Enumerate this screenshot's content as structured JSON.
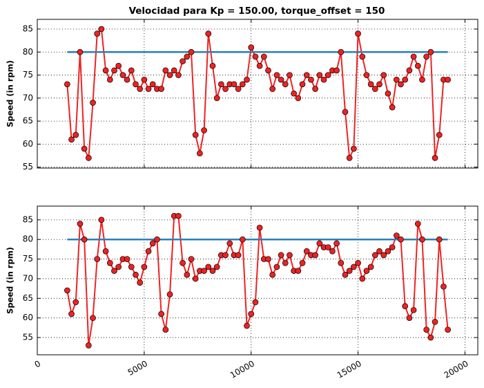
{
  "chart_data": [
    {
      "type": "line",
      "title": "Velocidad para Kp = 150.00, torque_offset = 150",
      "ylabel": "Speed (in rpm)",
      "xlim": [
        0,
        20600
      ],
      "xticks": [
        0,
        5000,
        10000,
        15000,
        20000
      ],
      "ylim": [
        54.8,
        87.1
      ],
      "yticks": [
        55,
        60,
        65,
        70,
        75,
        80,
        85
      ],
      "grid": true,
      "series": [
        {
          "color": "#ee2222",
          "marker": "o",
          "x": [
            1400,
            1600,
            1800,
            2000,
            2200,
            2400,
            2600,
            2800,
            3000,
            3200,
            3400,
            3600,
            3800,
            4000,
            4200,
            4400,
            4600,
            4800,
            5000,
            5200,
            5400,
            5600,
            5800,
            6000,
            6200,
            6400,
            6600,
            6800,
            7000,
            7200,
            7400,
            7600,
            7800,
            8000,
            8200,
            8400,
            8600,
            8800,
            9000,
            9200,
            9400,
            9600,
            9800,
            10000,
            10200,
            10400,
            10600,
            10800,
            11000,
            11200,
            11400,
            11600,
            11800,
            12000,
            12200,
            12400,
            12600,
            12800,
            13000,
            13200,
            13400,
            13600,
            13800,
            14000,
            14200,
            14400,
            14600,
            14800,
            15000,
            15200,
            15400,
            15600,
            15800,
            16000,
            16200,
            16400,
            16600,
            16800,
            17000,
            17200,
            17400,
            17600,
            17800,
            18000,
            18200,
            18400,
            18600,
            18800,
            19000,
            19200
          ],
          "values": [
            73,
            61,
            62,
            80,
            59,
            57,
            69,
            84,
            85,
            76,
            74,
            76,
            77,
            75,
            74,
            76,
            73,
            72,
            74,
            72,
            73,
            72,
            72,
            76,
            75,
            76,
            75,
            78,
            79,
            80,
            62,
            58,
            63,
            84,
            77,
            70,
            73,
            72,
            73,
            73,
            72,
            73,
            74,
            81,
            79,
            77,
            79,
            76,
            72,
            75,
            74,
            73,
            75,
            71,
            70,
            73,
            75,
            74,
            72,
            75,
            74,
            75,
            76,
            76,
            80,
            67,
            57,
            59,
            84,
            79,
            75,
            73,
            72,
            73,
            75,
            71,
            68,
            74,
            73,
            74,
            76,
            79,
            77,
            74,
            79,
            80,
            57,
            62,
            74,
            74
          ]
        },
        {
          "color": "#2a7fb8",
          "x": [
            1400,
            19200
          ],
          "values": [
            80,
            80
          ]
        }
      ]
    },
    {
      "type": "line",
      "ylabel": "Speed (in rpm)",
      "xlim": [
        0,
        20600
      ],
      "xticks": [
        0,
        5000,
        10000,
        15000,
        20000
      ],
      "ylim": [
        50.6,
        88.5
      ],
      "yticks": [
        55,
        60,
        65,
        70,
        75,
        80,
        85
      ],
      "grid": true,
      "series": [
        {
          "color": "#ee2222",
          "marker": "o",
          "x": [
            1400,
            1600,
            1800,
            2000,
            2200,
            2400,
            2600,
            2800,
            3000,
            3200,
            3400,
            3600,
            3800,
            4000,
            4200,
            4400,
            4600,
            4800,
            5000,
            5200,
            5400,
            5600,
            5800,
            6000,
            6200,
            6400,
            6600,
            6800,
            7000,
            7200,
            7400,
            7600,
            7800,
            8000,
            8200,
            8400,
            8600,
            8800,
            9000,
            9200,
            9400,
            9600,
            9800,
            10000,
            10200,
            10400,
            10600,
            10800,
            11000,
            11200,
            11400,
            11600,
            11800,
            12000,
            12200,
            12400,
            12600,
            12800,
            13000,
            13200,
            13400,
            13600,
            13800,
            14000,
            14200,
            14400,
            14600,
            14800,
            15000,
            15200,
            15400,
            15600,
            15800,
            16000,
            16200,
            16400,
            16600,
            16800,
            17000,
            17200,
            17400,
            17600,
            17800,
            18000,
            18200,
            18400,
            18600,
            18800,
            19000,
            19200
          ],
          "values": [
            67,
            61,
            64,
            84,
            80,
            53,
            60,
            75,
            85,
            77,
            74,
            72,
            73,
            75,
            75,
            73,
            71,
            69,
            73,
            77,
            79,
            80,
            61,
            57,
            66,
            86,
            86,
            74,
            71,
            75,
            70,
            72,
            72,
            73,
            72,
            73,
            76,
            76,
            79,
            76,
            76,
            80,
            58,
            61,
            64,
            83,
            75,
            75,
            71,
            73,
            76,
            74,
            76,
            72,
            72,
            74,
            77,
            76,
            76,
            79,
            78,
            78,
            77,
            79,
            74,
            71,
            72,
            73,
            74,
            70,
            72,
            73,
            76,
            77,
            76,
            77,
            78,
            81,
            80,
            63,
            60,
            62,
            84,
            80,
            57,
            55,
            59,
            80,
            68,
            57
          ]
        },
        {
          "color": "#2a7fb8",
          "x": [
            1400,
            19200
          ],
          "values": [
            80,
            80
          ]
        }
      ]
    }
  ]
}
